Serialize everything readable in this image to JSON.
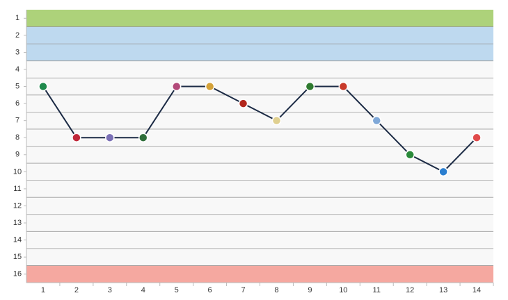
{
  "chart_data": {
    "type": "line",
    "x": [
      1,
      2,
      3,
      4,
      5,
      6,
      7,
      8,
      9,
      10,
      11,
      12,
      13,
      14
    ],
    "xlim": [
      0.5,
      14.5
    ],
    "xticks": [
      1,
      2,
      3,
      4,
      5,
      6,
      7,
      8,
      9,
      10,
      11,
      12,
      13,
      14
    ],
    "ylim": [
      16.5,
      0.5
    ],
    "yticks": [
      1,
      2,
      3,
      4,
      5,
      6,
      7,
      8,
      9,
      10,
      11,
      12,
      13,
      14,
      15,
      16
    ],
    "series": [
      {
        "color": "#1c2b45",
        "values": [
          5,
          8,
          8,
          8,
          5,
          5,
          6,
          7,
          5,
          5,
          7,
          9,
          10,
          8
        ],
        "marker_colors": [
          "#1f8a4c",
          "#c0283a",
          "#7a6fb5",
          "#2f6e3a",
          "#b34a7a",
          "#d4a23a",
          "#b2261c",
          "#e0d090",
          "#2f7a2f",
          "#c83a2a",
          "#7fa8d8",
          "#2a8a3a",
          "#2b7fd0",
          "#e04a4a"
        ]
      }
    ],
    "zones": [
      {
        "from": 1,
        "to": 1,
        "color": "#add27a"
      },
      {
        "from": 2,
        "to": 3,
        "color": "#bed9ef"
      },
      {
        "from": 16,
        "to": 16,
        "color": "#f5a8a0"
      }
    ]
  }
}
